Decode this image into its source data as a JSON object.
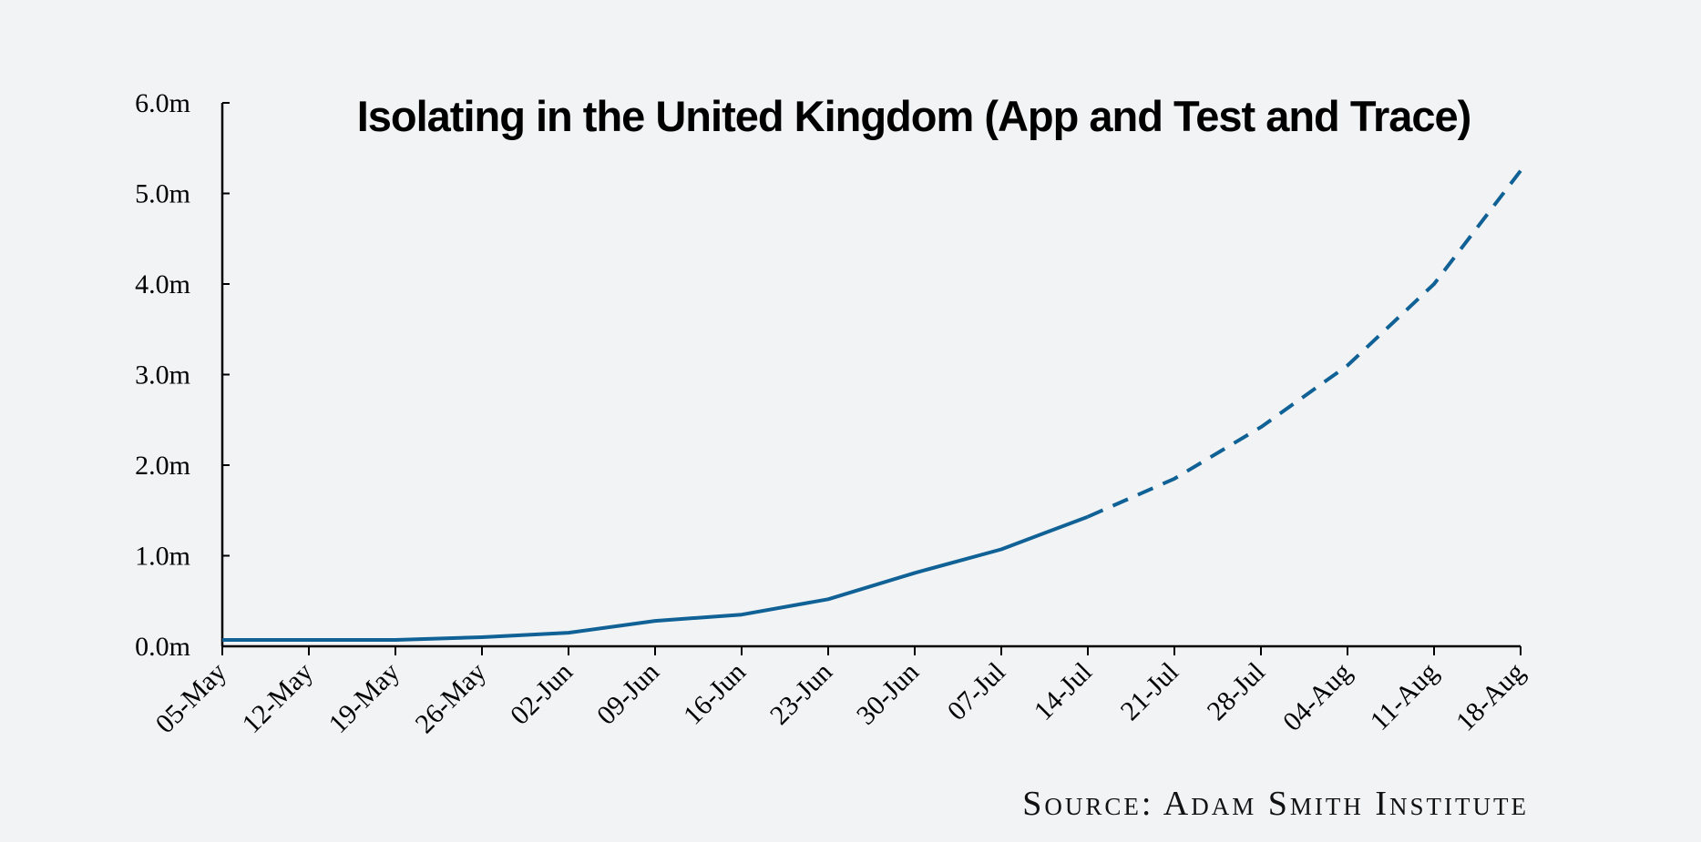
{
  "chart_data": {
    "type": "line",
    "title": "Isolating in the United Kingdom (App and Test and Trace)",
    "source": "Source: Adam Smith Institute",
    "categories": [
      "05-May",
      "12-May",
      "19-May",
      "26-May",
      "02-Jun",
      "09-Jun",
      "16-Jun",
      "23-Jun",
      "30-Jun",
      "07-Jul",
      "14-Jul",
      "21-Jul",
      "28-Jul",
      "04-Aug",
      "11-Aug",
      "18-Aug"
    ],
    "y_ticks": [
      "0.0m",
      "1.0m",
      "2.0m",
      "3.0m",
      "4.0m",
      "5.0m",
      "6.0m"
    ],
    "ylim": [
      0,
      6
    ],
    "y_unit": "m",
    "grid": false,
    "series": [
      {
        "style": "solid",
        "color": "#0f6196",
        "values": [
          0.07,
          0.07,
          0.07,
          0.1,
          0.15,
          0.28,
          0.35,
          0.52,
          0.81,
          1.07,
          1.43,
          null,
          null,
          null,
          null,
          null
        ]
      },
      {
        "style": "dashed",
        "color": "#0f6196",
        "values": [
          null,
          null,
          null,
          null,
          null,
          null,
          null,
          null,
          null,
          null,
          1.43,
          1.85,
          2.42,
          3.1,
          4.0,
          5.25
        ]
      }
    ]
  }
}
